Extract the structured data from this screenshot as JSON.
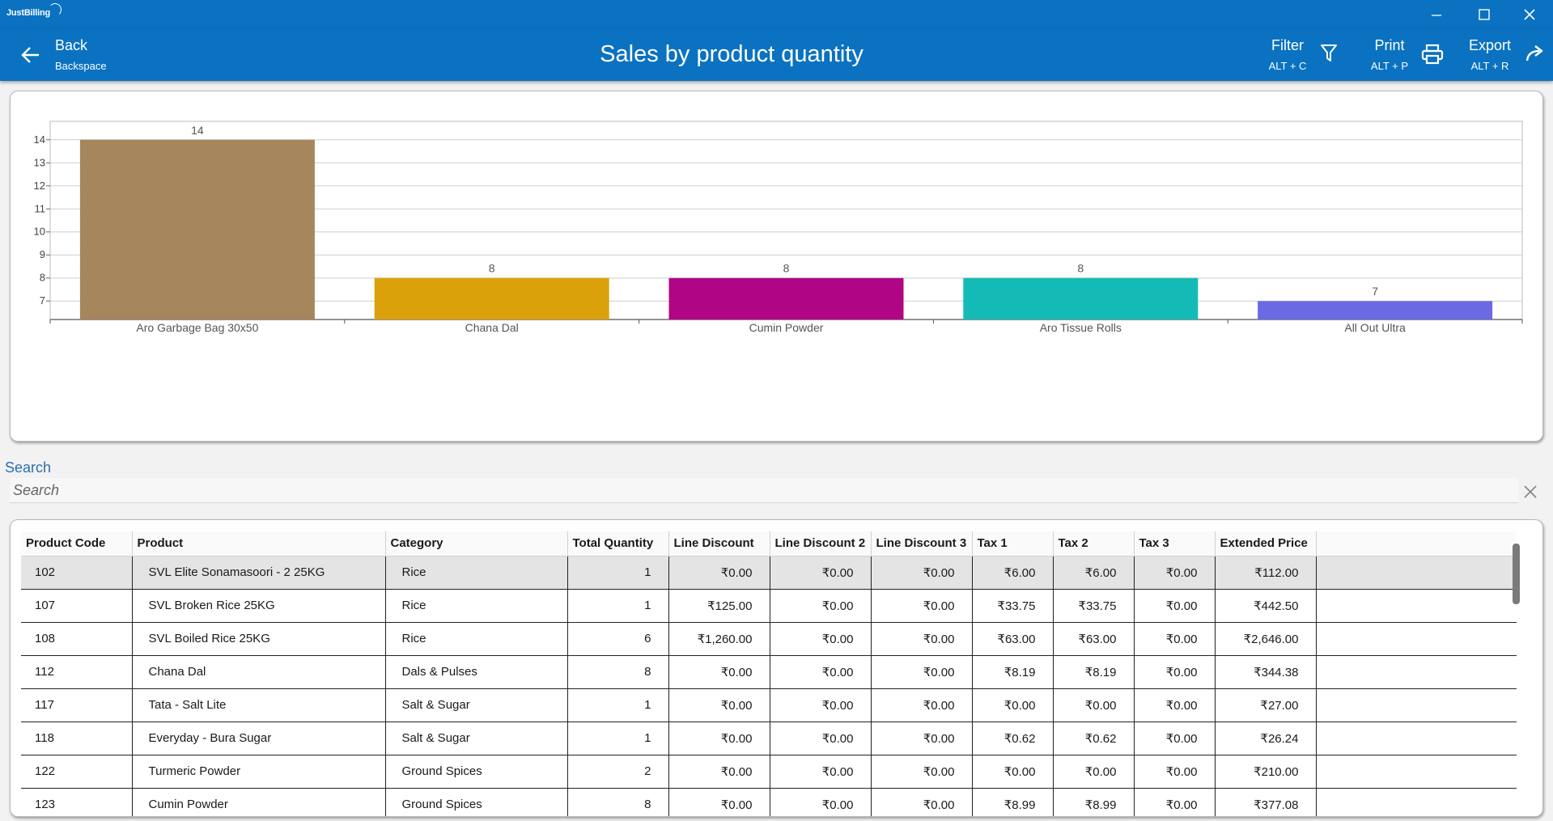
{
  "app": {
    "logo_text": "JustBilling"
  },
  "header": {
    "back_label": "Back",
    "back_hint": "Backspace",
    "title": "Sales by product quantity",
    "filter_label": "Filter",
    "filter_hint": "ALT + C",
    "print_label": "Print",
    "print_hint": "ALT + P",
    "export_label": "Export",
    "export_hint": "ALT + R"
  },
  "chart_data": {
    "type": "bar",
    "categories": [
      "Aro Garbage Bag 30x50",
      "Chana Dal",
      "Cumin Powder",
      "Aro Tissue Rolls",
      "All Out Ultra"
    ],
    "values": [
      14,
      8,
      8,
      8,
      7
    ],
    "colors": [
      "#a6865c",
      "#dba10b",
      "#b00685",
      "#14bbb6",
      "#6b69e3"
    ],
    "yticks": [
      "7",
      "8",
      "9",
      "10",
      "11",
      "12",
      "13",
      "14"
    ],
    "ylim": [
      6.2,
      14.8
    ],
    "grid": true,
    "title": "",
    "xlabel": "",
    "ylabel": ""
  },
  "search": {
    "label": "Search",
    "placeholder": "Search"
  },
  "table": {
    "columns": [
      "Product Code",
      "Product",
      "Category",
      "Total Quantity",
      "Line Discount",
      "Line Discount 2",
      "Line Discount 3",
      "Tax 1",
      "Tax 2",
      "Tax 3",
      "Extended Price"
    ],
    "rows": [
      [
        "102",
        "SVL Elite Sonamasoori - 2 25KG",
        "Rice",
        "1",
        "₹0.00",
        "₹0.00",
        "₹0.00",
        "₹6.00",
        "₹6.00",
        "₹0.00",
        "₹112.00"
      ],
      [
        "107",
        "SVL Broken Rice 25KG",
        "Rice",
        "1",
        "₹125.00",
        "₹0.00",
        "₹0.00",
        "₹33.75",
        "₹33.75",
        "₹0.00",
        "₹442.50"
      ],
      [
        "108",
        "SVL Boiled Rice 25KG",
        "Rice",
        "6",
        "₹1,260.00",
        "₹0.00",
        "₹0.00",
        "₹63.00",
        "₹63.00",
        "₹0.00",
        "₹2,646.00"
      ],
      [
        "112",
        "Chana Dal",
        "Dals & Pulses",
        "8",
        "₹0.00",
        "₹0.00",
        "₹0.00",
        "₹8.19",
        "₹8.19",
        "₹0.00",
        "₹344.38"
      ],
      [
        "117",
        "Tata - Salt Lite",
        "Salt & Sugar",
        "1",
        "₹0.00",
        "₹0.00",
        "₹0.00",
        "₹0.00",
        "₹0.00",
        "₹0.00",
        "₹27.00"
      ],
      [
        "118",
        "Everyday - Bura Sugar",
        "Salt & Sugar",
        "1",
        "₹0.00",
        "₹0.00",
        "₹0.00",
        "₹0.62",
        "₹0.62",
        "₹0.00",
        "₹26.24"
      ],
      [
        "122",
        "Turmeric Powder",
        "Ground Spices",
        "2",
        "₹0.00",
        "₹0.00",
        "₹0.00",
        "₹0.00",
        "₹0.00",
        "₹0.00",
        "₹210.00"
      ],
      [
        "123",
        "Cumin Powder",
        "Ground Spices",
        "8",
        "₹0.00",
        "₹0.00",
        "₹0.00",
        "₹8.99",
        "₹8.99",
        "₹0.00",
        "₹377.08"
      ]
    ]
  }
}
